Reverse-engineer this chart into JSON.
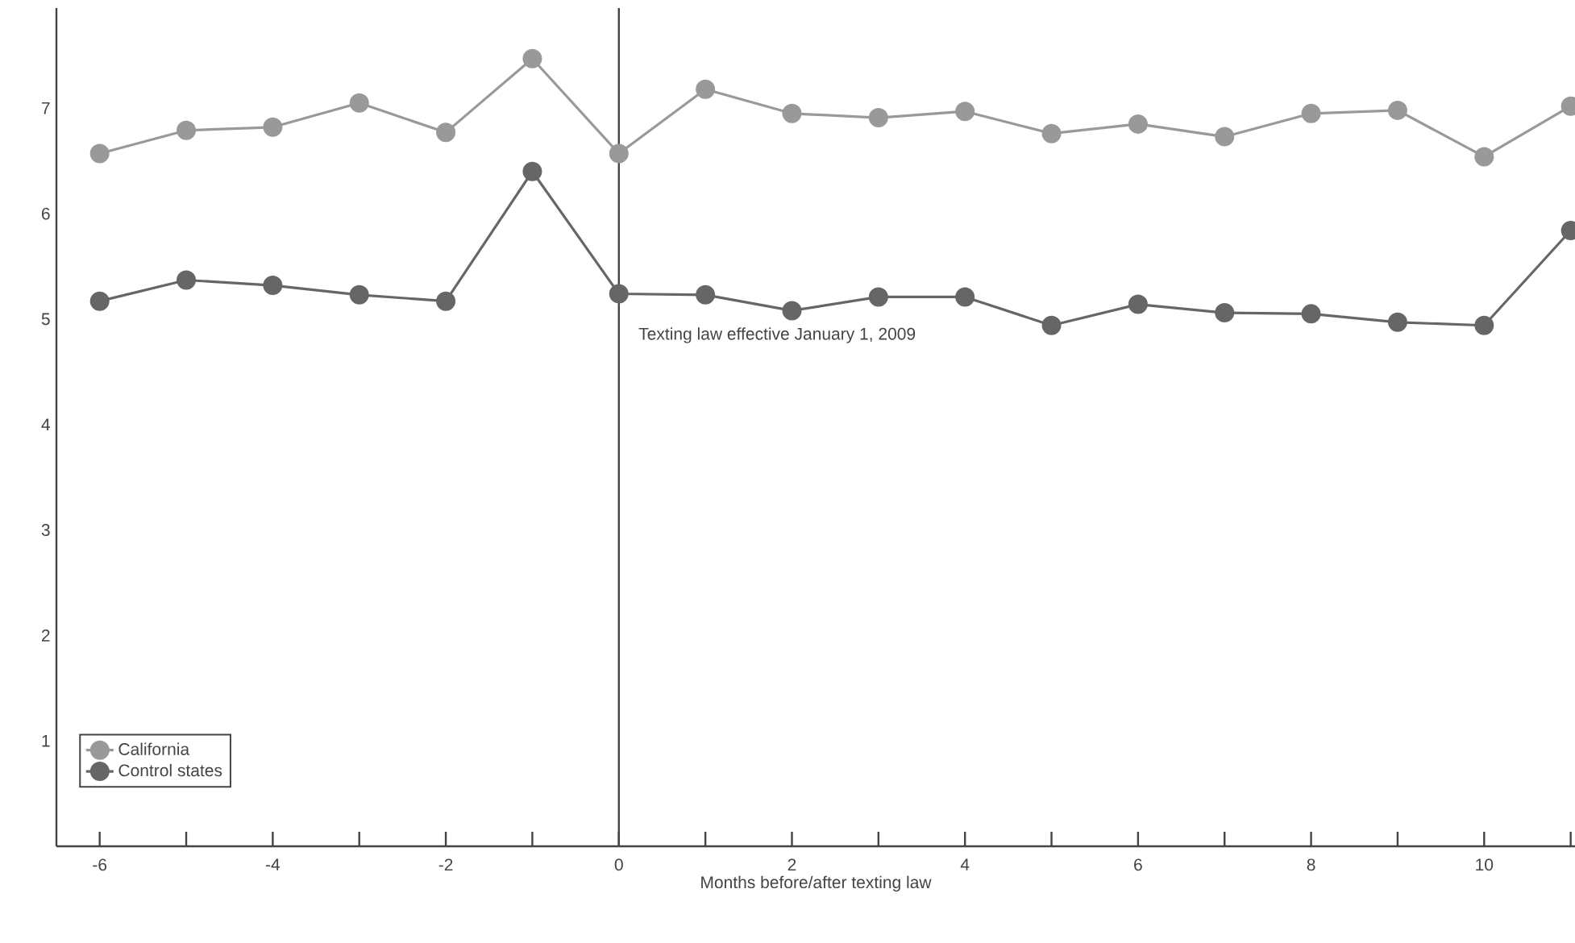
{
  "chart_data": {
    "type": "line",
    "xlabel": "Months before/after texting law",
    "x": [
      -6,
      -5,
      -4,
      -3,
      -2,
      -1,
      0,
      1,
      2,
      3,
      4,
      5,
      6,
      7,
      8,
      9,
      10,
      11
    ],
    "series": [
      {
        "name": "California",
        "color": "#999999",
        "values": [
          6.57,
          6.79,
          6.82,
          7.05,
          6.77,
          7.47,
          6.57,
          7.18,
          6.95,
          6.91,
          6.97,
          6.76,
          6.85,
          6.73,
          6.95,
          6.98,
          6.54,
          7.02
        ]
      },
      {
        "name": "Control states",
        "color": "#666666",
        "values": [
          5.17,
          5.37,
          5.32,
          5.23,
          5.17,
          6.4,
          5.24,
          5.23,
          5.08,
          5.21,
          5.21,
          4.94,
          5.14,
          5.06,
          5.05,
          4.97,
          4.94,
          5.84
        ]
      }
    ],
    "xlim": [
      -6.5,
      11.05
    ],
    "ylim": [
      0,
      7.95
    ],
    "xticks": [
      -6,
      {
        "value": -5,
        "label": null
      },
      -4,
      {
        "value": -3,
        "label": null
      },
      -2,
      {
        "value": -1,
        "label": null
      },
      0,
      {
        "value": 1,
        "label": null
      },
      2,
      {
        "value": 3,
        "label": null
      },
      4,
      {
        "value": 5,
        "label": null
      },
      6,
      {
        "value": 7,
        "label": null
      },
      8,
      {
        "value": 9,
        "label": null
      },
      10,
      {
        "value": 11,
        "label": null
      }
    ],
    "yticks": [
      1,
      2,
      3,
      4,
      5,
      6,
      7
    ],
    "ref_lines": [
      {
        "axis": "x",
        "value": 0,
        "label": "Texting law effective January 1, 2009",
        "color": "#444444"
      }
    ],
    "marker": "circle",
    "line_style": "solid",
    "grid": false,
    "legend": "bottom left"
  }
}
